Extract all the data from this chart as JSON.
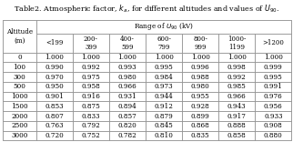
{
  "title_bold": "Table2.",
  "title_rest": " Atmospheric factor, $k_{a}$, for different altitudes and values of $U_{90}$.",
  "col_header_row2": [
    "<199",
    "200-\n399",
    "400-\n599",
    "600-\n799",
    "800-\n999",
    "1000-\n1199",
    ">1200"
  ],
  "row_labels": [
    "0",
    "100",
    "300",
    "500",
    "1000",
    "1500",
    "2000",
    "2500",
    "3000"
  ],
  "data": [
    [
      1.0,
      1.0,
      1.0,
      1.0,
      1.0,
      1.0,
      1.0
    ],
    [
      0.99,
      0.992,
      0.993,
      0.995,
      0.996,
      0.998,
      0.999
    ],
    [
      0.97,
      0.975,
      0.98,
      0.984,
      0.988,
      0.992,
      0.995
    ],
    [
      0.95,
      0.958,
      0.966,
      0.973,
      0.98,
      0.985,
      0.991
    ],
    [
      0.901,
      0.916,
      0.931,
      0.944,
      0.955,
      0.966,
      0.976
    ],
    [
      0.853,
      0.875,
      0.894,
      0.912,
      0.928,
      0.943,
      0.956
    ],
    [
      0.807,
      0.833,
      0.857,
      0.879,
      0.899,
      0.917,
      0.933
    ],
    [
      0.763,
      0.792,
      0.82,
      0.845,
      0.868,
      0.888,
      0.908
    ],
    [
      0.72,
      0.752,
      0.782,
      0.81,
      0.835,
      0.858,
      0.88
    ]
  ],
  "cell_bg": "white",
  "header_bg": "white",
  "border_color": "#888888",
  "font_size": 5.2,
  "title_font_size": 5.8
}
